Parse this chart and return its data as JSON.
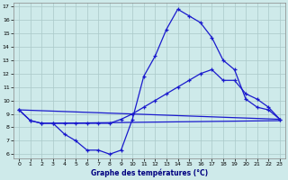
{
  "xlabel": "Graphe des températures (°C)",
  "xlim": [
    -0.5,
    23.5
  ],
  "ylim": [
    5.7,
    17.3
  ],
  "yticks": [
    6,
    7,
    8,
    9,
    10,
    11,
    12,
    13,
    14,
    15,
    16,
    17
  ],
  "xticks": [
    0,
    1,
    2,
    3,
    4,
    5,
    6,
    7,
    8,
    9,
    10,
    11,
    12,
    13,
    14,
    15,
    16,
    17,
    18,
    19,
    20,
    21,
    22,
    23
  ],
  "background_color": "#ceeaea",
  "line_color": "#1a1acd",
  "grid_color": "#aac8c8",
  "line1_x": [
    0,
    1,
    2,
    3,
    4,
    5,
    6,
    7,
    8,
    9,
    10,
    11,
    12,
    13,
    14,
    15,
    16,
    17,
    18,
    19,
    20,
    21,
    22,
    23
  ],
  "line1_y": [
    9.3,
    8.5,
    8.3,
    8.3,
    7.5,
    7.0,
    6.3,
    6.3,
    6.0,
    6.3,
    8.6,
    11.8,
    13.3,
    15.3,
    16.8,
    16.3,
    15.8,
    14.7,
    13.0,
    12.3,
    10.1,
    9.5,
    9.3,
    8.6
  ],
  "line2_x": [
    0,
    1,
    2,
    3,
    4,
    5,
    6,
    7,
    8,
    9,
    10,
    11,
    12,
    13,
    14,
    15,
    16,
    17,
    18,
    19,
    20,
    21,
    22,
    23
  ],
  "line2_y": [
    9.3,
    8.5,
    8.3,
    8.3,
    8.3,
    8.3,
    8.3,
    8.3,
    8.3,
    8.6,
    9.0,
    9.5,
    10.0,
    10.5,
    11.0,
    11.5,
    12.0,
    12.3,
    11.5,
    11.5,
    10.5,
    10.1,
    9.5,
    8.6
  ],
  "line3_x": [
    0,
    23
  ],
  "line3_y": [
    9.3,
    8.6
  ],
  "line4_x": [
    3,
    23
  ],
  "line4_y": [
    8.3,
    8.5
  ],
  "figsize": [
    3.2,
    2.0
  ],
  "dpi": 100
}
